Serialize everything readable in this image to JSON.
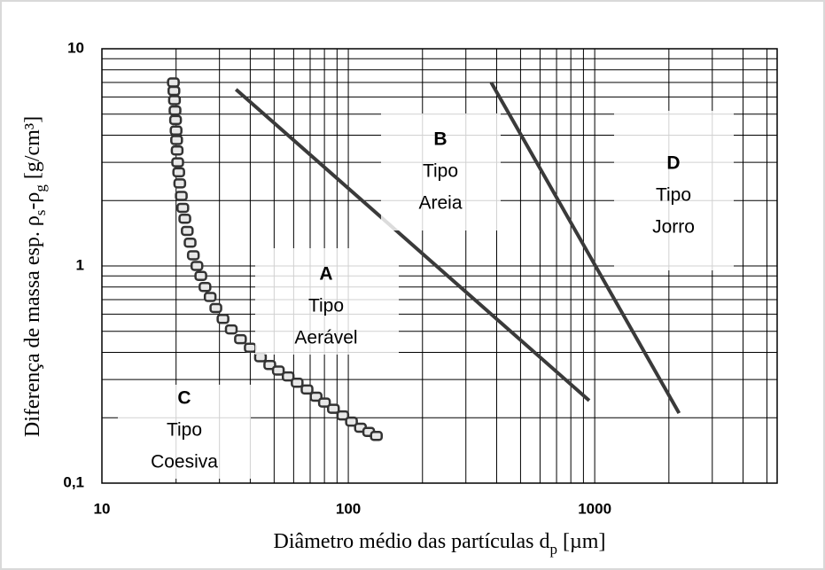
{
  "chart_data": {
    "type": "scatter",
    "x_label": [
      {
        "text": "Diâmetro  médio das partículas d"
      },
      {
        "text": "p",
        "sub": true
      },
      {
        "text": " [µm]"
      }
    ],
    "y_label": [
      {
        "text": "Diferença de massa esp. ρ"
      },
      {
        "text": "s",
        "sub": true
      },
      {
        "text": "-ρ"
      },
      {
        "text": "g",
        "sub": true
      },
      {
        "text": " [g/cm³]"
      }
    ],
    "log_x": true,
    "log_y": true,
    "grid": true,
    "minor_grid": true,
    "xlim": [
      10,
      5500
    ],
    "ylim": [
      0.1,
      10
    ],
    "xticks": [
      10,
      100,
      1000
    ],
    "yticks": [
      {
        "value": 0.1,
        "label": "0,1"
      },
      1,
      10
    ],
    "series": [
      {
        "kind": "points",
        "color": "#333333",
        "x": [
          19.5,
          19.6,
          19.7,
          19.8,
          19.9,
          20,
          20.1,
          20.2,
          20.3,
          20.5,
          20.7,
          21,
          21.3,
          21.7,
          22.2,
          22.8,
          23.5,
          24.3,
          25.2,
          26.2,
          27.5,
          29,
          31,
          33.5,
          36.5,
          40,
          44,
          48,
          52,
          57,
          62,
          68,
          74,
          80,
          87,
          95,
          103,
          112,
          121,
          130
        ],
        "values": [
          7,
          6.4,
          5.8,
          5.2,
          4.7,
          4.2,
          3.8,
          3.4,
          3.0,
          2.7,
          2.4,
          2.1,
          1.85,
          1.65,
          1.45,
          1.28,
          1.12,
          1.0,
          0.9,
          0.8,
          0.72,
          0.64,
          0.57,
          0.51,
          0.46,
          0.42,
          0.38,
          0.35,
          0.33,
          0.31,
          0.29,
          0.27,
          0.25,
          0.235,
          0.22,
          0.205,
          0.192,
          0.18,
          0.172,
          0.165
        ]
      },
      {
        "kind": "line",
        "color": "#3a3a3a",
        "x": [
          35,
          950
        ],
        "values": [
          6.5,
          0.24
        ]
      },
      {
        "kind": "line",
        "color": "#3a3a3a",
        "x": [
          380,
          2200
        ],
        "values": [
          7,
          0.21
        ]
      }
    ],
    "annotations": [
      {
        "letter": "A",
        "lines": [
          "Tipo",
          "Aerável"
        ]
      },
      {
        "letter": "B",
        "lines": [
          "Tipo",
          "Areia"
        ]
      },
      {
        "letter": "C",
        "lines": [
          "Tipo",
          "Coesiva"
        ]
      },
      {
        "letter": "D",
        "lines": [
          "Tipo",
          "Jorro"
        ]
      }
    ]
  }
}
